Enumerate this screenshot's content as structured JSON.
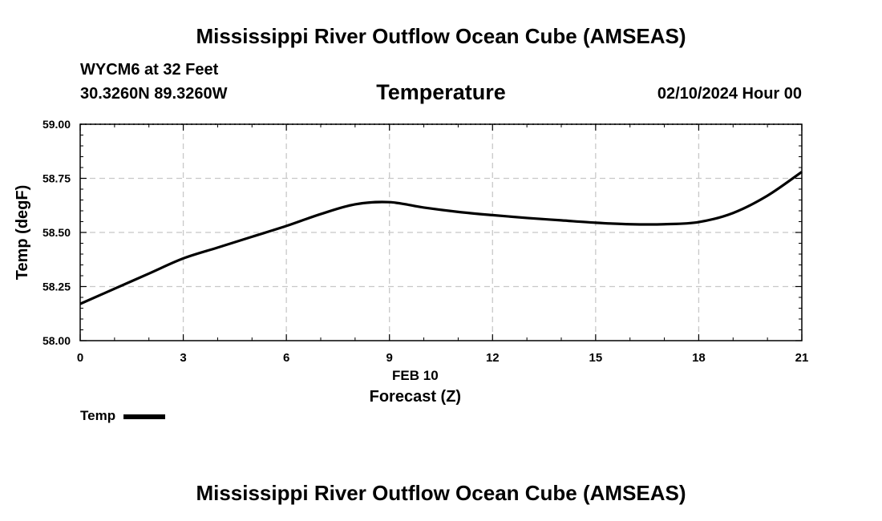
{
  "header": {
    "main_title": "Mississippi River Outflow Ocean Cube (AMSEAS)",
    "station": "WYCM6 at 32 Feet",
    "coords": "30.3260N  89.3260W",
    "chart_title": "Temperature",
    "datetime": "02/10/2024 Hour 00"
  },
  "legend": {
    "label": "Temp"
  },
  "footer": {
    "title": "Mississippi River Outflow Ocean Cube (AMSEAS)"
  },
  "chart_data": {
    "type": "line",
    "title": "Temperature",
    "xlabel": "Forecast (Z)",
    "xlabel_date": "FEB 10",
    "ylabel": "Temp (degF)",
    "xlim": [
      0,
      21
    ],
    "ylim": [
      58.0,
      59.0
    ],
    "x_ticks": [
      0,
      3,
      6,
      9,
      12,
      15,
      18,
      21
    ],
    "x_tick_labels": [
      "0",
      "3",
      "6",
      "9",
      "12",
      "15",
      "18",
      "21"
    ],
    "y_ticks": [
      58.0,
      58.25,
      58.5,
      58.75,
      59.0
    ],
    "y_tick_labels": [
      "58.00",
      "58.25",
      "58.50",
      "58.75",
      "59.00"
    ],
    "grid": true,
    "line_color": "#000000",
    "series": [
      {
        "name": "Temp",
        "x": [
          0,
          1,
          2,
          3,
          4,
          5,
          6,
          7,
          8,
          9,
          10,
          11,
          12,
          13,
          14,
          15,
          16,
          17,
          18,
          19,
          20,
          21
        ],
        "values": [
          58.17,
          58.24,
          58.31,
          58.38,
          58.43,
          58.48,
          58.53,
          58.585,
          58.63,
          58.64,
          58.615,
          58.595,
          58.58,
          58.567,
          58.556,
          58.545,
          58.538,
          58.538,
          58.548,
          58.59,
          58.67,
          58.78
        ]
      }
    ]
  }
}
